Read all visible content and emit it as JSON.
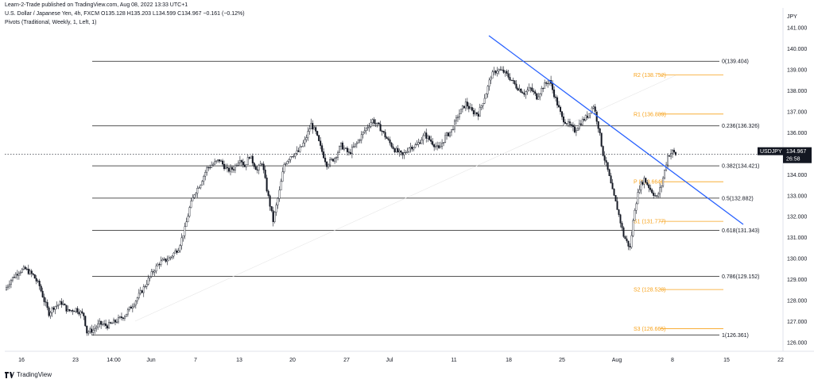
{
  "header": {
    "publisher": "Learn-2-Trade published on TradingView.com, Aug 08, 2022 13:33 UTC+1",
    "symbol_line": "U.S. Dollar / Japanese Yen, 4h, FXCM  O135.128  H135.203  L134.599  C134.967  −0.161 (−0.12%)",
    "pivots_line": "Pivots (Traditional, Weekly, 1, Left, 1)"
  },
  "footer": {
    "logo_text": "TradingView"
  },
  "colors": {
    "candle": "#131722",
    "fib_line": "#1c1c1c",
    "pivot": "#f7a21b",
    "trendline": "#2962ff",
    "price_tag": "#131722"
  },
  "chart_data": {
    "type": "candlestick",
    "symbol": "USDJPY",
    "currency_label": "JPY",
    "y_ticks": [
      "141.000",
      "140.000",
      "139.000",
      "138.000",
      "137.000",
      "136.000",
      "135.000",
      "134.000",
      "133.000",
      "132.000",
      "131.000",
      "130.000",
      "129.000",
      "128.000",
      "127.000",
      "126.000"
    ],
    "ylim": [
      125.5,
      141.6
    ],
    "x_ticks": [
      "16",
      "23",
      "14:00",
      "Jun",
      "7",
      "13",
      "20",
      "27",
      "Jul",
      "11",
      "18",
      "25",
      "Aug",
      "8",
      "15",
      "22"
    ],
    "last_price": {
      "label": "USDJPY",
      "price": "134.967",
      "countdown": "26:58",
      "value": 134.967
    },
    "fib_levels": [
      {
        "label": "0(139.404)",
        "value": 139.404
      },
      {
        "label": "0.236(136.326)",
        "value": 136.326
      },
      {
        "label": "0.382(134.421)",
        "value": 134.421
      },
      {
        "label": "0.5(132.882)",
        "value": 132.882
      },
      {
        "label": "0.618(131.343)",
        "value": 131.343
      },
      {
        "label": "0.786(129.152)",
        "value": 129.152
      },
      {
        "label": "1(126.361)",
        "value": 126.361
      }
    ],
    "pivot_levels": [
      {
        "label": "R2 (138.752)",
        "value": 138.752
      },
      {
        "label": "R1 (136.889)",
        "value": 136.889
      },
      {
        "label": "P (133.664)",
        "value": 133.664
      },
      {
        "label": "S1 (131.777)",
        "value": 131.777
      },
      {
        "label": "S2 (128.528)",
        "value": 128.528
      },
      {
        "label": "S3 (126.665)",
        "value": 126.665
      }
    ],
    "path_anchors": [
      [
        0,
        128.5
      ],
      [
        4,
        129.0
      ],
      [
        9,
        129.4
      ],
      [
        13,
        129.5
      ],
      [
        18,
        129.2
      ],
      [
        22,
        128.7
      ],
      [
        25,
        128.0
      ],
      [
        28,
        127.4
      ],
      [
        31,
        127.7
      ],
      [
        36,
        127.9
      ],
      [
        40,
        127.5
      ],
      [
        45,
        127.6
      ],
      [
        50,
        127.3
      ],
      [
        52,
        126.5
      ],
      [
        56,
        126.6
      ],
      [
        60,
        126.9
      ],
      [
        65,
        126.8
      ],
      [
        70,
        127.0
      ],
      [
        76,
        127.3
      ],
      [
        82,
        127.9
      ],
      [
        88,
        128.6
      ],
      [
        94,
        129.4
      ],
      [
        98,
        129.8
      ],
      [
        104,
        130.0
      ],
      [
        110,
        130.5
      ],
      [
        114,
        131.4
      ],
      [
        117,
        132.4
      ],
      [
        120,
        133.1
      ],
      [
        124,
        133.6
      ],
      [
        128,
        134.3
      ],
      [
        132,
        134.5
      ],
      [
        136,
        134.7
      ],
      [
        141,
        134.2
      ],
      [
        145,
        134.3
      ],
      [
        149,
        134.8
      ],
      [
        152,
        134.4
      ],
      [
        155,
        134.9
      ],
      [
        160,
        134.2
      ],
      [
        163,
        134.6
      ],
      [
        166,
        133.3
      ],
      [
        170,
        131.8
      ],
      [
        174,
        133.2
      ],
      [
        177,
        134.5
      ],
      [
        181,
        134.9
      ],
      [
        186,
        135.1
      ],
      [
        190,
        135.6
      ],
      [
        194,
        136.4
      ],
      [
        197,
        136.0
      ],
      [
        200,
        135.3
      ],
      [
        204,
        134.5
      ],
      [
        209,
        134.8
      ],
      [
        213,
        135.4
      ],
      [
        218,
        135.0
      ],
      [
        223,
        135.5
      ],
      [
        228,
        136.1
      ],
      [
        233,
        136.6
      ],
      [
        238,
        136.2
      ],
      [
        243,
        135.6
      ],
      [
        247,
        135.2
      ],
      [
        252,
        134.9
      ],
      [
        256,
        135.3
      ],
      [
        261,
        135.4
      ],
      [
        266,
        135.9
      ],
      [
        270,
        135.6
      ],
      [
        275,
        135.2
      ],
      [
        279,
        135.8
      ],
      [
        283,
        136.1
      ],
      [
        287,
        136.8
      ],
      [
        292,
        137.4
      ],
      [
        296,
        137.0
      ],
      [
        300,
        136.9
      ],
      [
        305,
        137.9
      ],
      [
        308,
        138.7
      ],
      [
        312,
        139.0
      ],
      [
        316,
        138.9
      ],
      [
        320,
        138.6
      ],
      [
        324,
        138.2
      ],
      [
        329,
        137.9
      ],
      [
        333,
        138.1
      ],
      [
        337,
        137.7
      ],
      [
        341,
        138.2
      ],
      [
        345,
        138.5
      ],
      [
        349,
        137.6
      ],
      [
        353,
        136.7
      ],
      [
        357,
        136.4
      ],
      [
        361,
        136.1
      ],
      [
        365,
        136.5
      ],
      [
        369,
        136.8
      ],
      [
        373,
        137.3
      ],
      [
        376,
        136.3
      ],
      [
        379,
        135.0
      ],
      [
        382,
        134.2
      ],
      [
        385,
        133.2
      ],
      [
        388,
        132.4
      ],
      [
        392,
        131.1
      ],
      [
        396,
        130.5
      ],
      [
        399,
        132.4
      ],
      [
        402,
        133.4
      ],
      [
        405,
        133.8
      ],
      [
        409,
        133.3
      ],
      [
        413,
        132.9
      ],
      [
        416,
        133.5
      ],
      [
        420,
        134.9
      ],
      [
        423,
        135.1
      ],
      [
        425,
        134.967
      ]
    ]
  }
}
